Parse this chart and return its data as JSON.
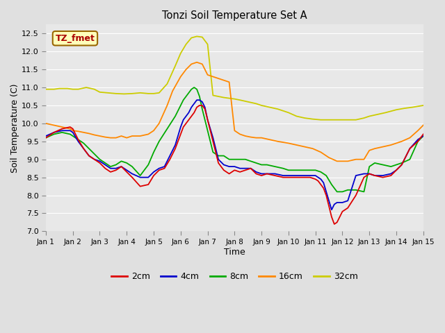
{
  "title": "Tonzi Soil Temperature Set A",
  "xlabel": "Time",
  "ylabel": "Soil Temperature (C)",
  "xlim": [
    0,
    14
  ],
  "ylim": [
    7.0,
    12.75
  ],
  "yticks": [
    7.0,
    7.5,
    8.0,
    8.5,
    9.0,
    9.5,
    10.0,
    10.5,
    11.0,
    11.5,
    12.0,
    12.5
  ],
  "xtick_labels": [
    "Jan 1",
    "Jan 2",
    "Jan 3",
    "Jan 4",
    "Jan 5",
    "Jan 6",
    "Jan 7",
    "Jan 8",
    "Jan 9",
    "Jan 10",
    "Jan 11",
    "Jan 12",
    "Jan 13",
    "Jan 14",
    "Jan 15"
  ],
  "background_color": "#e0e0e0",
  "plot_bg_color": "#e8e8e8",
  "grid_color": "#ffffff",
  "annotation_label": "TZ_fmet",
  "annotation_color": "#aa0000",
  "annotation_bg": "#ffffbb",
  "annotation_edge": "#996600",
  "legend_order": [
    "2cm",
    "4cm",
    "8cm",
    "16cm",
    "32cm"
  ],
  "series_colors": {
    "2cm": "#dd0000",
    "4cm": "#0000cc",
    "8cm": "#00aa00",
    "16cm": "#ff8800",
    "32cm": "#cccc00"
  },
  "x_2cm": [
    0.0,
    0.3,
    0.6,
    0.9,
    1.0,
    1.2,
    1.4,
    1.6,
    1.8,
    2.0,
    2.2,
    2.4,
    2.6,
    2.8,
    3.0,
    3.2,
    3.5,
    3.8,
    4.0,
    4.2,
    4.4,
    4.6,
    4.8,
    5.0,
    5.1,
    5.2,
    5.3,
    5.4,
    5.5,
    5.6,
    5.7,
    5.8,
    5.9,
    6.0,
    6.1,
    6.2,
    6.4,
    6.6,
    6.8,
    7.0,
    7.2,
    7.4,
    7.6,
    7.8,
    8.0,
    8.2,
    8.5,
    8.8,
    9.0,
    9.2,
    9.5,
    9.8,
    10.0,
    10.1,
    10.2,
    10.3,
    10.4,
    10.5,
    10.6,
    10.7,
    10.8,
    11.0,
    11.2,
    11.5,
    11.8,
    12.0,
    12.2,
    12.5,
    12.8,
    13.0,
    13.2,
    13.5,
    13.8,
    14.0
  ],
  "y_2cm": [
    9.6,
    9.75,
    9.85,
    9.9,
    9.85,
    9.55,
    9.3,
    9.1,
    9.0,
    8.9,
    8.75,
    8.65,
    8.7,
    8.8,
    8.65,
    8.5,
    8.25,
    8.3,
    8.55,
    8.7,
    8.75,
    9.0,
    9.3,
    9.7,
    9.9,
    10.0,
    10.1,
    10.2,
    10.3,
    10.45,
    10.5,
    10.5,
    10.4,
    10.1,
    9.8,
    9.5,
    8.9,
    8.7,
    8.6,
    8.7,
    8.65,
    8.7,
    8.75,
    8.6,
    8.55,
    8.6,
    8.55,
    8.5,
    8.5,
    8.5,
    8.5,
    8.5,
    8.45,
    8.4,
    8.3,
    8.2,
    8.0,
    7.7,
    7.4,
    7.2,
    7.25,
    7.55,
    7.65,
    8.0,
    8.5,
    8.6,
    8.55,
    8.5,
    8.55,
    8.7,
    8.85,
    9.3,
    9.5,
    9.7
  ],
  "x_4cm": [
    0.0,
    0.3,
    0.6,
    0.9,
    1.0,
    1.2,
    1.4,
    1.6,
    1.8,
    2.0,
    2.2,
    2.4,
    2.6,
    2.8,
    3.0,
    3.2,
    3.5,
    3.8,
    4.0,
    4.2,
    4.4,
    4.6,
    4.8,
    5.0,
    5.1,
    5.2,
    5.3,
    5.4,
    5.5,
    5.6,
    5.7,
    5.8,
    5.9,
    6.0,
    6.1,
    6.2,
    6.4,
    6.6,
    6.8,
    7.0,
    7.2,
    7.4,
    7.6,
    7.8,
    8.0,
    8.2,
    8.5,
    8.8,
    9.0,
    9.2,
    9.5,
    9.8,
    10.0,
    10.1,
    10.2,
    10.3,
    10.4,
    10.5,
    10.6,
    10.7,
    10.8,
    11.0,
    11.2,
    11.5,
    11.8,
    12.0,
    12.2,
    12.5,
    12.8,
    13.0,
    13.2,
    13.5,
    13.8,
    14.0
  ],
  "y_4cm": [
    9.65,
    9.75,
    9.8,
    9.8,
    9.75,
    9.5,
    9.3,
    9.1,
    9.0,
    8.95,
    8.85,
    8.75,
    8.75,
    8.8,
    8.7,
    8.6,
    8.5,
    8.5,
    8.65,
    8.75,
    8.8,
    9.1,
    9.4,
    9.9,
    10.1,
    10.2,
    10.3,
    10.45,
    10.55,
    10.65,
    10.65,
    10.6,
    10.45,
    10.1,
    9.85,
    9.6,
    9.0,
    8.85,
    8.8,
    8.8,
    8.75,
    8.75,
    8.75,
    8.65,
    8.6,
    8.6,
    8.6,
    8.55,
    8.55,
    8.55,
    8.55,
    8.55,
    8.55,
    8.5,
    8.45,
    8.35,
    8.1,
    7.85,
    7.6,
    7.75,
    7.8,
    7.8,
    7.85,
    8.55,
    8.6,
    8.6,
    8.55,
    8.55,
    8.6,
    8.7,
    8.85,
    9.3,
    9.55,
    9.65
  ],
  "x_8cm": [
    0.0,
    0.3,
    0.6,
    0.9,
    1.0,
    1.2,
    1.4,
    1.6,
    1.8,
    2.0,
    2.2,
    2.4,
    2.6,
    2.8,
    3.0,
    3.2,
    3.5,
    3.8,
    4.0,
    4.2,
    4.5,
    4.8,
    5.0,
    5.1,
    5.2,
    5.3,
    5.4,
    5.5,
    5.6,
    5.7,
    5.8,
    5.9,
    6.0,
    6.1,
    6.2,
    6.4,
    6.6,
    6.8,
    7.0,
    7.2,
    7.4,
    7.6,
    7.8,
    8.0,
    8.2,
    8.5,
    8.8,
    9.0,
    9.2,
    9.5,
    9.8,
    10.0,
    10.2,
    10.4,
    10.6,
    10.8,
    11.0,
    11.2,
    11.5,
    11.8,
    12.0,
    12.2,
    12.5,
    12.8,
    13.0,
    13.2,
    13.5,
    13.8,
    14.0
  ],
  "y_8cm": [
    9.6,
    9.7,
    9.75,
    9.7,
    9.65,
    9.55,
    9.45,
    9.3,
    9.15,
    9.0,
    8.9,
    8.8,
    8.85,
    8.95,
    8.9,
    8.8,
    8.55,
    8.85,
    9.2,
    9.5,
    9.85,
    10.2,
    10.5,
    10.65,
    10.75,
    10.85,
    10.95,
    11.0,
    10.95,
    10.75,
    10.4,
    10.1,
    9.8,
    9.5,
    9.2,
    9.1,
    9.1,
    9.0,
    9.0,
    9.0,
    9.0,
    8.95,
    8.9,
    8.85,
    8.85,
    8.8,
    8.75,
    8.7,
    8.7,
    8.7,
    8.7,
    8.7,
    8.65,
    8.55,
    8.3,
    8.1,
    8.1,
    8.15,
    8.15,
    8.1,
    8.8,
    8.9,
    8.85,
    8.8,
    8.85,
    8.9,
    9.0,
    9.5,
    9.65
  ],
  "x_16cm": [
    0.0,
    0.3,
    0.6,
    0.9,
    1.0,
    1.2,
    1.4,
    1.6,
    1.8,
    2.0,
    2.2,
    2.4,
    2.6,
    2.8,
    3.0,
    3.2,
    3.5,
    3.8,
    4.0,
    4.2,
    4.5,
    4.7,
    5.0,
    5.2,
    5.4,
    5.6,
    5.8,
    6.0,
    6.2,
    6.4,
    6.6,
    6.8,
    7.0,
    7.2,
    7.4,
    7.6,
    7.8,
    8.0,
    8.3,
    8.6,
    9.0,
    9.3,
    9.6,
    9.9,
    10.2,
    10.5,
    10.8,
    11.0,
    11.2,
    11.5,
    11.8,
    12.0,
    12.2,
    12.5,
    12.8,
    13.0,
    13.2,
    13.5,
    13.8,
    14.0
  ],
  "y_16cm": [
    10.0,
    9.95,
    9.9,
    9.85,
    9.8,
    9.78,
    9.75,
    9.72,
    9.68,
    9.65,
    9.62,
    9.6,
    9.6,
    9.65,
    9.6,
    9.65,
    9.65,
    9.7,
    9.8,
    10.0,
    10.5,
    10.9,
    11.3,
    11.5,
    11.65,
    11.7,
    11.65,
    11.35,
    11.3,
    11.25,
    11.2,
    11.15,
    9.8,
    9.7,
    9.65,
    9.62,
    9.6,
    9.6,
    9.55,
    9.5,
    9.45,
    9.4,
    9.35,
    9.3,
    9.2,
    9.05,
    8.95,
    8.95,
    8.95,
    9.0,
    9.0,
    9.25,
    9.3,
    9.35,
    9.4,
    9.45,
    9.5,
    9.6,
    9.8,
    9.95
  ],
  "x_32cm": [
    0.0,
    0.3,
    0.5,
    0.8,
    1.0,
    1.2,
    1.5,
    1.8,
    2.0,
    2.3,
    2.6,
    2.9,
    3.2,
    3.5,
    3.8,
    4.0,
    4.2,
    4.5,
    4.8,
    5.0,
    5.2,
    5.4,
    5.6,
    5.8,
    6.0,
    6.2,
    6.4,
    6.6,
    6.8,
    7.0,
    7.2,
    7.5,
    7.8,
    8.0,
    8.3,
    8.6,
    9.0,
    9.3,
    9.6,
    9.9,
    10.2,
    10.5,
    10.8,
    11.0,
    11.2,
    11.5,
    11.8,
    12.0,
    12.3,
    12.6,
    13.0,
    13.3,
    13.6,
    14.0
  ],
  "y_32cm": [
    10.95,
    10.95,
    10.97,
    10.97,
    10.95,
    10.95,
    11.0,
    10.95,
    10.87,
    10.85,
    10.83,
    10.82,
    10.83,
    10.85,
    10.83,
    10.83,
    10.85,
    11.1,
    11.6,
    11.95,
    12.2,
    12.38,
    12.42,
    12.4,
    12.2,
    10.78,
    10.75,
    10.72,
    10.7,
    10.68,
    10.65,
    10.6,
    10.55,
    10.5,
    10.45,
    10.4,
    10.3,
    10.2,
    10.15,
    10.12,
    10.1,
    10.1,
    10.1,
    10.1,
    10.1,
    10.1,
    10.15,
    10.2,
    10.25,
    10.3,
    10.38,
    10.42,
    10.45,
    10.5
  ]
}
